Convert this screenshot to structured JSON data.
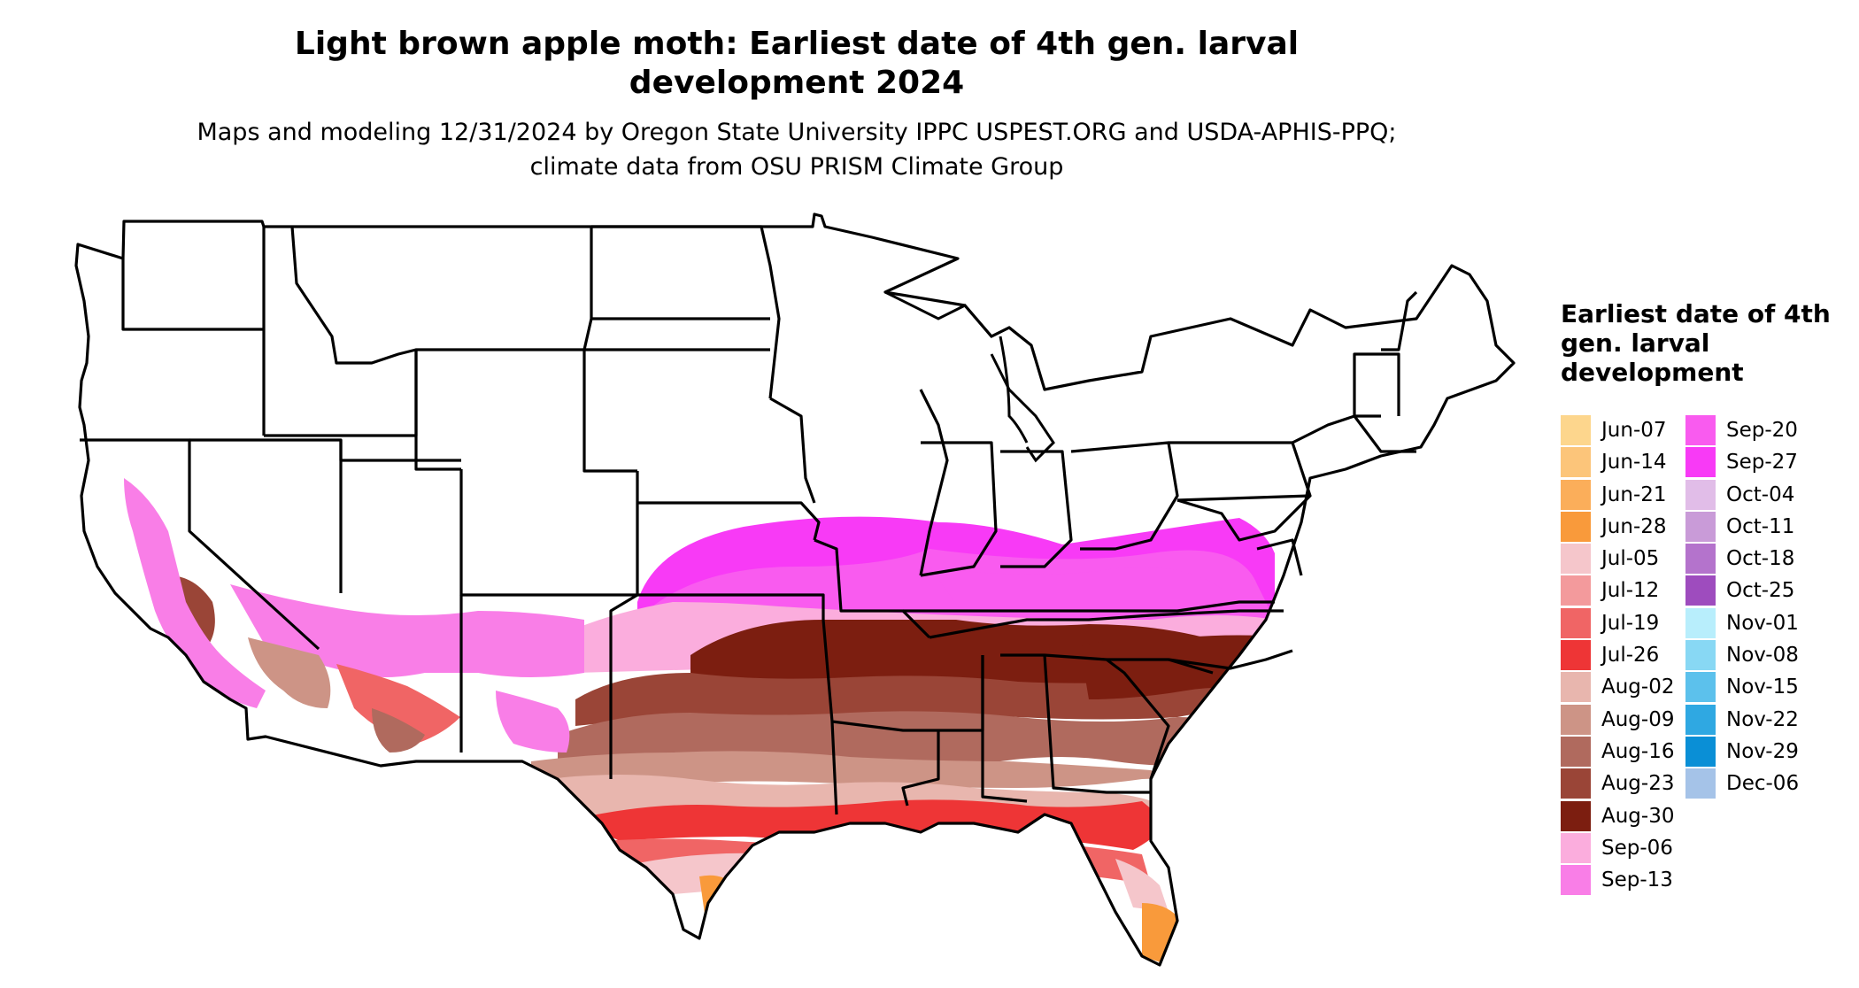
{
  "title": "Light brown apple moth: Earliest date of 4th gen. larval development 2024",
  "subtitle": "Maps and modeling 12/31/2024 by Oregon State University IPPC USPEST.ORG and USDA-APHIS-PPQ; climate data from OSU PRISM Climate Group",
  "legend": {
    "title": "Earliest date of 4th gen. larval development",
    "items": [
      {
        "label": "Jun-07",
        "color": "#FDD68D"
      },
      {
        "label": "Jun-14",
        "color": "#FCC57A"
      },
      {
        "label": "Jun-21",
        "color": "#FBAE5A"
      },
      {
        "label": "Jun-28",
        "color": "#F99A3B"
      },
      {
        "label": "Jul-05",
        "color": "#F5C6CB"
      },
      {
        "label": "Jul-12",
        "color": "#F39A9C"
      },
      {
        "label": "Jul-19",
        "color": "#F06565"
      },
      {
        "label": "Jul-26",
        "color": "#EE3536"
      },
      {
        "label": "Aug-02",
        "color": "#E8B6AE"
      },
      {
        "label": "Aug-09",
        "color": "#CD9486"
      },
      {
        "label": "Aug-16",
        "color": "#B06A5E"
      },
      {
        "label": "Aug-23",
        "color": "#9A4537"
      },
      {
        "label": "Aug-30",
        "color": "#7C1E10"
      },
      {
        "label": "Sep-06",
        "color": "#FBADDD"
      },
      {
        "label": "Sep-13",
        "color": "#F97EE7"
      },
      {
        "label": "Sep-20",
        "color": "#F95BEF"
      },
      {
        "label": "Sep-27",
        "color": "#F83AF6"
      },
      {
        "label": "Oct-04",
        "color": "#E1BDE8"
      },
      {
        "label": "Oct-11",
        "color": "#C99BD8"
      },
      {
        "label": "Oct-18",
        "color": "#B473CC"
      },
      {
        "label": "Oct-25",
        "color": "#9E4CBE"
      },
      {
        "label": "Nov-01",
        "color": "#B8EEFC"
      },
      {
        "label": "Nov-08",
        "color": "#88D8F4"
      },
      {
        "label": "Nov-15",
        "color": "#5CC1EC"
      },
      {
        "label": "Nov-22",
        "color": "#2FA8E2"
      },
      {
        "label": "Nov-29",
        "color": "#0A8FD6"
      },
      {
        "label": "Dec-06",
        "color": "#A5C3E8"
      }
    ]
  }
}
